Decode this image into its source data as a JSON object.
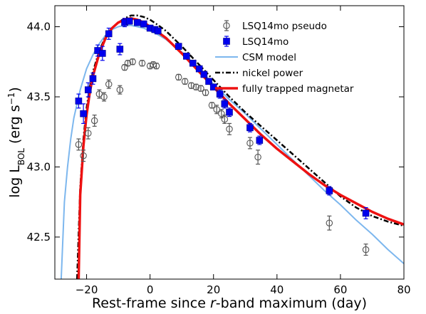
{
  "chart_data": {
    "type": "scatter",
    "xlabel": {
      "pre": "Rest-frame since ",
      "var": "r",
      "post": "-band maximum (day)"
    },
    "ylabel": {
      "pre": "log L",
      "sub": "BOL",
      "mid": " (erg s",
      "sup": "−1",
      "post": ")"
    },
    "xlim": [
      -30,
      80
    ],
    "ylim": [
      42.2,
      44.15
    ],
    "xticks": [
      -20,
      0,
      20,
      40,
      60,
      80
    ],
    "yticks": [
      42.5,
      43.0,
      43.5,
      44.0
    ],
    "xtick_labels": [
      "−20",
      "0",
      "20",
      "40",
      "60",
      "80"
    ],
    "ytick_labels": [
      "42.5",
      "43.0",
      "43.5",
      "44.0"
    ],
    "legend_position": "top-right",
    "series": [
      {
        "name": "LSQ14mo pseudo",
        "kind": "points",
        "marker": "open-circle",
        "color": "#555555",
        "points": [
          [
            -22.5,
            43.16,
            0.04
          ],
          [
            -21.0,
            43.08,
            0.04
          ],
          [
            -19.5,
            43.24,
            0.04
          ],
          [
            -17.5,
            43.33,
            0.04
          ],
          [
            -16.0,
            43.52,
            0.03
          ],
          [
            -14.5,
            43.5,
            0.03
          ],
          [
            -13.0,
            43.59,
            0.03
          ],
          [
            -9.5,
            43.55,
            0.03
          ],
          [
            -8.0,
            43.71,
            0.02
          ],
          [
            -7.0,
            43.74,
            0.02
          ],
          [
            -5.5,
            43.75,
            0.02
          ],
          [
            -2.5,
            43.74,
            0.02
          ],
          [
            0.0,
            43.72,
            0.02
          ],
          [
            1.0,
            43.73,
            0.02
          ],
          [
            2.0,
            43.72,
            0.02
          ],
          [
            9.0,
            43.64,
            0.02
          ],
          [
            11.0,
            43.61,
            0.02
          ],
          [
            13.0,
            43.58,
            0.02
          ],
          [
            14.5,
            43.57,
            0.02
          ],
          [
            16.0,
            43.56,
            0.02
          ],
          [
            17.5,
            43.53,
            0.02
          ],
          [
            19.5,
            43.44,
            0.02
          ],
          [
            21.0,
            43.41,
            0.03
          ],
          [
            22.5,
            43.38,
            0.03
          ],
          [
            23.5,
            43.34,
            0.03
          ],
          [
            25.0,
            43.27,
            0.04
          ],
          [
            31.5,
            43.17,
            0.04
          ],
          [
            34.0,
            43.07,
            0.05
          ],
          [
            56.5,
            42.6,
            0.05
          ],
          [
            68.0,
            42.41,
            0.04
          ]
        ]
      },
      {
        "name": "LSQ14mo",
        "kind": "points",
        "marker": "filled-square",
        "color": "#0000ee",
        "points": [
          [
            -22.5,
            43.47,
            0.05
          ],
          [
            -21.0,
            43.38,
            0.07
          ],
          [
            -19.5,
            43.55,
            0.05
          ],
          [
            -18.0,
            43.63,
            0.04
          ],
          [
            -16.5,
            43.83,
            0.04
          ],
          [
            -15.0,
            43.81,
            0.05
          ],
          [
            -13.0,
            43.95,
            0.04
          ],
          [
            -9.5,
            43.84,
            0.04
          ],
          [
            -8.0,
            44.03,
            0.03
          ],
          [
            -6.5,
            44.04,
            0.02
          ],
          [
            -4.0,
            44.03,
            0.02
          ],
          [
            -2.0,
            44.02,
            0.02
          ],
          [
            0.0,
            43.99,
            0.02
          ],
          [
            1.5,
            43.98,
            0.02
          ],
          [
            2.5,
            43.97,
            0.02
          ],
          [
            9.0,
            43.86,
            0.02
          ],
          [
            11.5,
            43.79,
            0.02
          ],
          [
            13.5,
            43.74,
            0.02
          ],
          [
            15.5,
            43.7,
            0.02
          ],
          [
            17.0,
            43.66,
            0.02
          ],
          [
            18.5,
            43.61,
            0.02
          ],
          [
            20.0,
            43.57,
            0.02
          ],
          [
            22.0,
            43.52,
            0.03
          ],
          [
            23.5,
            43.45,
            0.03
          ],
          [
            25.0,
            43.39,
            0.03
          ],
          [
            31.5,
            43.28,
            0.03
          ],
          [
            34.5,
            43.19,
            0.03
          ],
          [
            56.5,
            42.83,
            0.03
          ],
          [
            68.0,
            42.67,
            0.04
          ]
        ]
      },
      {
        "name": "CSM model",
        "kind": "line",
        "style": "solid",
        "color": "#7db7ee",
        "points": [
          [
            -28.0,
            42.2
          ],
          [
            -27.0,
            42.75
          ],
          [
            -26.0,
            43.0
          ],
          [
            -25.0,
            43.2
          ],
          [
            -24.0,
            43.35
          ],
          [
            -22.0,
            43.55
          ],
          [
            -20.0,
            43.7
          ],
          [
            -18.0,
            43.8
          ],
          [
            -16.0,
            43.88
          ],
          [
            -14.0,
            43.94
          ],
          [
            -12.0,
            43.98
          ],
          [
            -10.0,
            44.0
          ],
          [
            -8.0,
            44.01
          ],
          [
            -6.0,
            44.01
          ],
          [
            -4.0,
            44.0
          ],
          [
            -2.0,
            43.99
          ],
          [
            0.0,
            43.97
          ],
          [
            2.0,
            43.95
          ],
          [
            5.0,
            43.91
          ],
          [
            10.0,
            43.82
          ],
          [
            15.0,
            43.71
          ],
          [
            20.0,
            43.59
          ],
          [
            25.0,
            43.48
          ],
          [
            30.0,
            43.38
          ],
          [
            35.0,
            43.27
          ],
          [
            40.0,
            43.16
          ],
          [
            45.0,
            43.05
          ],
          [
            50.0,
            42.94
          ],
          [
            55.0,
            42.83
          ],
          [
            60.0,
            42.73
          ],
          [
            65.0,
            42.62
          ],
          [
            70.0,
            42.52
          ],
          [
            75.0,
            42.41
          ],
          [
            80.0,
            42.31
          ]
        ]
      },
      {
        "name": "nickel power",
        "kind": "line",
        "style": "dashdot",
        "color": "#000000",
        "points": [
          [
            -23.0,
            42.2
          ],
          [
            -22.0,
            42.85
          ],
          [
            -21.0,
            43.2
          ],
          [
            -20.0,
            43.42
          ],
          [
            -19.0,
            43.57
          ],
          [
            -18.0,
            43.68
          ],
          [
            -16.0,
            43.83
          ],
          [
            -14.0,
            43.93
          ],
          [
            -12.0,
            43.99
          ],
          [
            -10.0,
            44.03
          ],
          [
            -8.0,
            44.06
          ],
          [
            -6.0,
            44.08
          ],
          [
            -4.0,
            44.08
          ],
          [
            -2.0,
            44.07
          ],
          [
            0.0,
            44.05
          ],
          [
            2.0,
            44.02
          ],
          [
            5.0,
            43.97
          ],
          [
            10.0,
            43.86
          ],
          [
            15.0,
            43.74
          ],
          [
            20.0,
            43.62
          ],
          [
            25.0,
            43.5
          ],
          [
            30.0,
            43.39
          ],
          [
            35.0,
            43.29
          ],
          [
            40.0,
            43.19
          ],
          [
            45.0,
            43.09
          ],
          [
            50.0,
            42.99
          ],
          [
            55.0,
            42.89
          ],
          [
            60.0,
            42.79
          ],
          [
            65.0,
            42.71
          ],
          [
            70.0,
            42.65
          ],
          [
            75.0,
            42.61
          ],
          [
            80.0,
            42.58
          ]
        ]
      },
      {
        "name": "fully trapped magnetar",
        "kind": "line",
        "style": "solid",
        "color": "#ee1111",
        "points": [
          [
            -22.5,
            42.2
          ],
          [
            -22.0,
            42.8
          ],
          [
            -21.0,
            43.15
          ],
          [
            -20.0,
            43.37
          ],
          [
            -19.0,
            43.53
          ],
          [
            -18.0,
            43.65
          ],
          [
            -16.0,
            43.81
          ],
          [
            -14.0,
            43.92
          ],
          [
            -12.0,
            43.99
          ],
          [
            -10.0,
            44.03
          ],
          [
            -8.0,
            44.05
          ],
          [
            -6.0,
            44.06
          ],
          [
            -4.0,
            44.05
          ],
          [
            -2.0,
            44.03
          ],
          [
            0.0,
            44.0
          ],
          [
            2.0,
            43.97
          ],
          [
            5.0,
            43.92
          ],
          [
            10.0,
            43.81
          ],
          [
            15.0,
            43.69
          ],
          [
            20.0,
            43.57
          ],
          [
            25.0,
            43.45
          ],
          [
            30.0,
            43.34
          ],
          [
            35.0,
            43.23
          ],
          [
            40.0,
            43.13
          ],
          [
            45.0,
            43.04
          ],
          [
            50.0,
            42.95
          ],
          [
            55.0,
            42.87
          ],
          [
            60.0,
            42.8
          ],
          [
            65.0,
            42.74
          ],
          [
            70.0,
            42.68
          ],
          [
            75.0,
            42.63
          ],
          [
            80.0,
            42.59
          ]
        ]
      }
    ]
  }
}
